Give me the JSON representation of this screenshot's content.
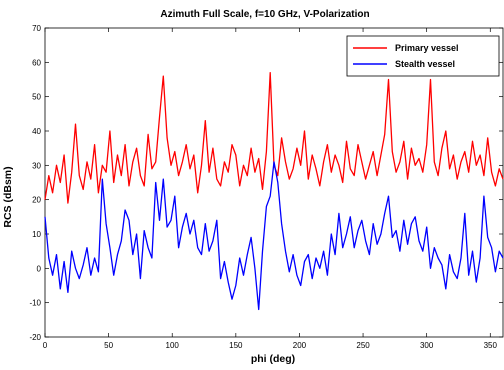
{
  "chart_data": {
    "type": "line",
    "title": "Azimuth Full Scale, f=10 GHz, V-Polarization",
    "xlabel": "phi (deg)",
    "ylabel": "RCS (dBsm)",
    "xlim": [
      0,
      360
    ],
    "ylim": [
      -20,
      70
    ],
    "xticks": [
      0,
      50,
      100,
      150,
      200,
      250,
      300,
      350
    ],
    "yticks": [
      -20,
      -10,
      0,
      10,
      20,
      30,
      40,
      50,
      60,
      70
    ],
    "grid": false,
    "legend_position": "top-right",
    "series": [
      {
        "name": "Primary vessel",
        "color": "#ff0000",
        "x": [
          0,
          3,
          6,
          9,
          12,
          15,
          18,
          21,
          24,
          27,
          30,
          33,
          36,
          39,
          42,
          45,
          48,
          51,
          54,
          57,
          60,
          63,
          66,
          69,
          72,
          75,
          78,
          81,
          84,
          87,
          90,
          93,
          96,
          99,
          102,
          105,
          108,
          111,
          114,
          117,
          120,
          123,
          126,
          129,
          132,
          135,
          138,
          141,
          144,
          147,
          150,
          153,
          156,
          159,
          162,
          165,
          168,
          171,
          174,
          177,
          180,
          183,
          186,
          189,
          192,
          195,
          198,
          201,
          204,
          207,
          210,
          213,
          216,
          219,
          222,
          225,
          228,
          231,
          234,
          237,
          240,
          243,
          246,
          249,
          252,
          255,
          258,
          261,
          264,
          267,
          270,
          273,
          276,
          279,
          282,
          285,
          288,
          291,
          294,
          297,
          300,
          303,
          306,
          309,
          312,
          315,
          318,
          321,
          324,
          327,
          330,
          333,
          336,
          339,
          342,
          345,
          348,
          351,
          354,
          357,
          360
        ],
        "y": [
          20,
          27,
          22,
          30,
          25,
          33,
          19,
          28,
          42,
          27,
          23,
          31,
          26,
          36,
          22,
          30,
          28,
          40,
          25,
          33,
          27,
          36,
          24,
          31,
          35,
          27,
          24,
          39,
          29,
          31,
          44,
          56,
          38,
          30,
          34,
          27,
          31,
          36,
          29,
          33,
          22,
          30,
          43,
          28,
          35,
          26,
          24,
          31,
          28,
          36,
          33,
          24,
          30,
          27,
          35,
          28,
          32,
          23,
          34,
          57,
          30,
          27,
          38,
          31,
          26,
          29,
          35,
          30,
          40,
          26,
          33,
          29,
          24,
          31,
          36,
          28,
          33,
          30,
          25,
          37,
          29,
          27,
          36,
          31,
          26,
          30,
          34,
          27,
          33,
          39,
          55,
          34,
          28,
          31,
          37,
          26,
          35,
          30,
          32,
          28,
          36,
          55,
          31,
          27,
          35,
          40,
          29,
          33,
          26,
          31,
          34,
          28,
          37,
          30,
          33,
          27,
          38,
          28,
          24,
          29,
          26
        ]
      },
      {
        "name": "Stealth vessel",
        "color": "#0000ff",
        "x": [
          0,
          3,
          6,
          9,
          12,
          15,
          18,
          21,
          24,
          27,
          30,
          33,
          36,
          39,
          42,
          45,
          48,
          51,
          54,
          57,
          60,
          63,
          66,
          69,
          72,
          75,
          78,
          81,
          84,
          87,
          90,
          93,
          96,
          99,
          102,
          105,
          108,
          111,
          114,
          117,
          120,
          123,
          126,
          129,
          132,
          135,
          138,
          141,
          144,
          147,
          150,
          153,
          156,
          159,
          162,
          165,
          168,
          171,
          174,
          177,
          180,
          183,
          186,
          189,
          192,
          195,
          198,
          201,
          204,
          207,
          210,
          213,
          216,
          219,
          222,
          225,
          228,
          231,
          234,
          237,
          240,
          243,
          246,
          249,
          252,
          255,
          258,
          261,
          264,
          267,
          270,
          273,
          276,
          279,
          282,
          285,
          288,
          291,
          294,
          297,
          300,
          303,
          306,
          309,
          312,
          315,
          318,
          321,
          324,
          327,
          330,
          333,
          336,
          339,
          342,
          345,
          348,
          351,
          354,
          357,
          360
        ],
        "y": [
          15,
          3,
          -2,
          4,
          -6,
          2,
          -7,
          5,
          0,
          -3,
          1,
          6,
          -2,
          3,
          -1,
          26,
          13,
          6,
          -2,
          4,
          8,
          17,
          14,
          4,
          10,
          -3,
          11,
          6,
          3,
          25,
          14,
          26,
          12,
          14,
          21,
          6,
          12,
          16,
          10,
          14,
          6,
          4,
          13,
          5,
          8,
          14,
          -3,
          2,
          -4,
          -9,
          -5,
          3,
          -2,
          4,
          9,
          0,
          -12,
          5,
          18,
          21,
          31,
          25,
          13,
          5,
          -1,
          4,
          -2,
          -5,
          2,
          4,
          -3,
          3,
          0,
          5,
          -2,
          10,
          4,
          16,
          6,
          10,
          15,
          6,
          11,
          14,
          8,
          4,
          13,
          7,
          10,
          16,
          21,
          9,
          11,
          5,
          14,
          7,
          13,
          15,
          8,
          5,
          12,
          0,
          6,
          3,
          1,
          -6,
          4,
          -1,
          -3,
          3,
          16,
          -2,
          5,
          -4,
          3,
          21,
          9,
          6,
          -1,
          5,
          3
        ]
      }
    ]
  }
}
